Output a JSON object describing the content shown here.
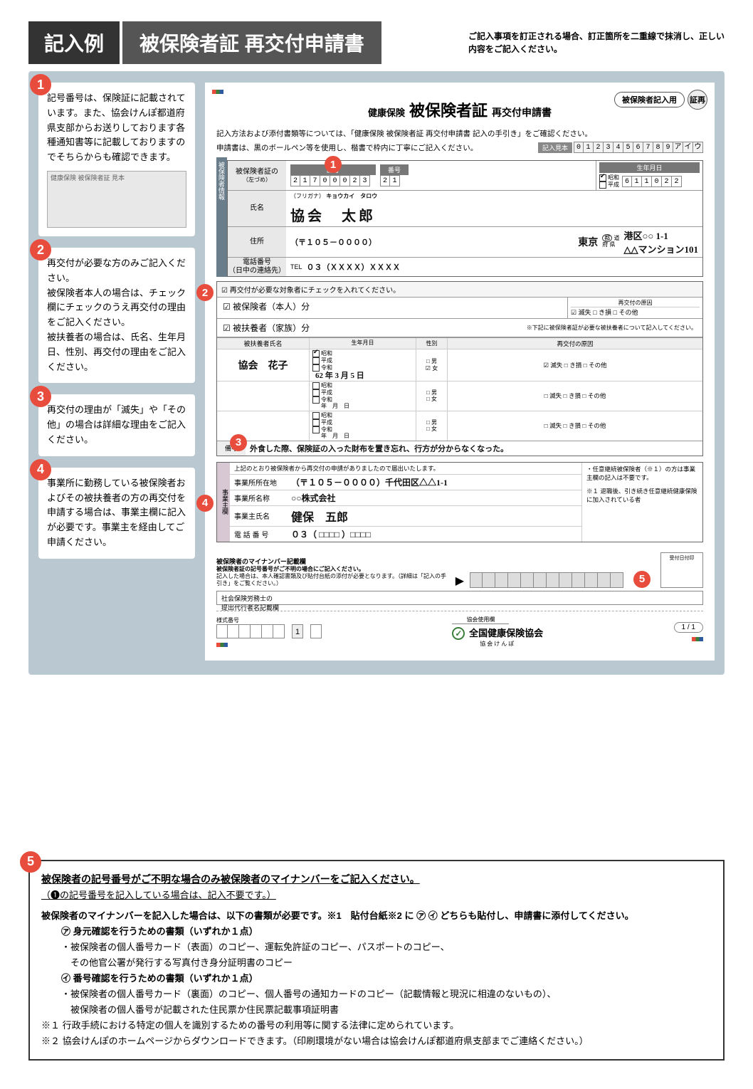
{
  "header": {
    "badge": "記入例",
    "title": "被保険者証 再交付申請書",
    "note": "ご記入事項を訂正される場合、訂正箇所を二重線で抹消し、正しい内容をご記入ください。"
  },
  "callouts": {
    "c1": "記号番号は、保険証に記載されています。また、協会けんぽ都道府県支部からお送りしております各種通知書等に記載しておりますのでそちらからも確認できます。",
    "c2": "再交付が必要な方のみご記入ください。\n被保険者本人の場合は、チェック欄にチェックのうえ再交付の理由をご記入ください。\n被扶養者の場合は、氏名、生年月日、性別、再交付の理由をご記入ください。",
    "c3": "再交付の理由が「滅失」や「その他」の場合は詳細な理由をご記入ください。",
    "c4": "事業所に勤務している被保険者およびその被扶養者の方の再交付を申請する場合は、事業主欄に記入が必要です。事業主を経由してご申請ください。"
  },
  "form": {
    "pill": "被保険者記入用",
    "stamp": "証再",
    "title_pre": "健康保険",
    "title_main": "被保険者証",
    "title_post": "再交付申請書",
    "note1": "記入方法および添付書類等については、「健康保険 被保険者証 再交付申請書 記入の手引き」をご確認ください。",
    "note2": "申請書は、黒のボールペン等を使用し、楷書で枠内に丁寧にご記入ください。",
    "sample_label": "記入見本",
    "sample_chars": [
      "0",
      "1",
      "2",
      "3",
      "4",
      "5",
      "6",
      "7",
      "8",
      "9",
      "ア",
      "イ",
      "ウ"
    ],
    "kigo_label": "記号",
    "bango_label": "番号",
    "kigo": [
      "2",
      "1",
      "7",
      "0",
      "0",
      "0",
      "2",
      "3"
    ],
    "bango": [
      "2",
      "1"
    ],
    "dob_label": "生年月日",
    "dob_unit_y": "年",
    "dob_unit_m": "月",
    "dob_unit_d": "日",
    "era_showa": "昭和",
    "era_heisei": "平成",
    "era_reiwa": "令和",
    "dob_cells": [
      "6",
      "1",
      "1",
      "0",
      "2",
      "2"
    ],
    "furigana_label": "（フリガナ）",
    "furigana": "キョウカイ　タロウ",
    "name_label_1": "被保険者証の",
    "name_label_2": "（左づめ）",
    "name_label_3": "氏名",
    "name": "協会　太郎",
    "addr_label": "住所",
    "postal": "（〒１０５－００００）",
    "pref": "東京",
    "pref_suffix_to": "都 道",
    "pref_suffix_fu": "府 県",
    "addr": "港区○○ 1-1\n△△マンション101",
    "tel_label": "電話番号\n（日中の連絡先）",
    "tel_pre": "TEL",
    "tel": "０３（ＸＸＸＸ）ＸＸＸＸ",
    "check_note": "☑ 再交付が必要な対象者にチェックを入れてください。",
    "honnin_row": "☑ 被保険者（本人）分",
    "saikoufu_reason_h": "再交付の原因",
    "honnin_reason": "☑ 滅失 □ き損 □ その他",
    "kazoku_row": "☑ 被扶養者（家族）分",
    "kazoku_note": "※下記に被保険者証が必要な被扶養者について記入してください。",
    "dep_h_name": "被扶養者氏名",
    "dep_h_dob": "生年月日",
    "dep_h_sex": "性別",
    "dep_h_reason": "再交付の原因",
    "dep1_name": "協会　花子",
    "dep1_dob": "62 年 3 月 5 日",
    "dep1_sex_m": "□ 男",
    "dep1_sex_f": "☑ 女",
    "dep1_reason": "☑ 滅失 □ き損 □ その他",
    "dep_empty_dob": "　年　月　日",
    "dep_empty_sex_m": "□ 男",
    "dep_empty_sex_f": "□ 女",
    "dep_empty_reason": "□ 滅失 □ き損 □ その他",
    "biko_label": "備考",
    "biko": "外食した際、保険証の入った財布を置き忘れ、行方が分からなくなった。",
    "emp_side": "事業主欄",
    "emp_note": "上記のとおり被保険者から再交付の申請がありましたので届出いたします。",
    "emp_addr_label": "事業所所在地",
    "emp_addr": "（〒１０５－００００）千代田区△△1-1",
    "emp_name_label": "事業所名称",
    "emp_name": "○○株式会社",
    "emp_owner_label": "事業主氏名",
    "emp_owner": "健保　五郎",
    "emp_tel_label": "電 話 番 号",
    "emp_tel": "０３（ □□□□ ）□□□□",
    "emp_right1": "・任意継続被保険者（※１）の方は事業主欄の記入は不要です。",
    "emp_right2": "※１ 退職後、引き続き任意継続健康保険に加入されている者",
    "mn_title": "被保険者のマイナンバー記載欄",
    "mn_sub1": "被保険者証の記号番号がご不明の場合にご記入ください。",
    "mn_sub2": "記入した場合は、本人確認書類及び貼付台紙の添付が必要となります。（詳細は「記入の手引き」をご覧ください。）",
    "stamp_box": "受付日付印",
    "proxy_label": "社会保険労務士の\n提出代行者名記載欄",
    "form_no_label": "様式番号",
    "kyokai_label": "協会使用欄",
    "assoc": "全国健康保険協会",
    "assoc_sub": "協会けんぽ",
    "page": "1 / 1"
  },
  "bottom": {
    "title": "被保険者の記号番号がご不明な場合のみ被保険者のマイナンバーをご記入ください。",
    "sub": "（❶の記号番号を記入している場合は、記入不要です。）",
    "lead": "被保険者のマイナンバーを記入した場合は、以下の書類が必要です。※1　貼付台紙※2 に ㋐ ㋑ どちらも貼付し、申請書に添付してください。",
    "a_head": "㋐ 身元確認を行うための書類（いずれか１点）",
    "a_body": "・被保険者の個人番号カード（表面）のコピー、運転免許証のコピー、パスポートのコピー、\n　その他官公署が発行する写真付き身分証明書のコピー",
    "i_head": "㋑ 番号確認を行うための書類（いずれか１点）",
    "i_body": "・被保険者の個人番号カード（裏面）のコピー、個人番号の通知カードのコピー（記載情報と現況に相違のないもの）、\n　被保険者の個人番号が記載された住民票か住民票記載事項証明書",
    "note1": "※１ 行政手続における特定の個人を識別するための番号の利用等に関する法律に定められています。",
    "note2": "※２ 協会けんぽのホームページからダウンロードできます。（印刷環境がない場合は協会けんぽ都道府県支部までご連絡ください。）"
  }
}
